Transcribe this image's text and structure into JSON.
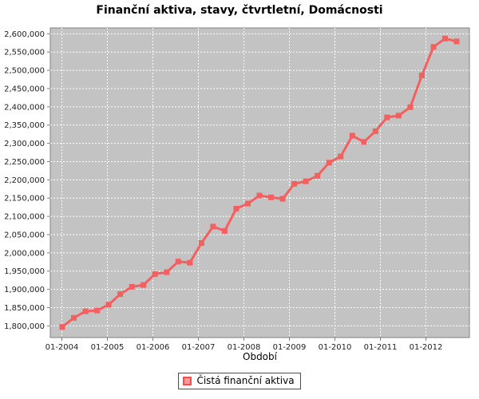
{
  "chart_data": {
    "type": "line",
    "title": "Finanční aktiva, stavy, čtvrtletní, Domácnosti",
    "xlabel": "Období",
    "ylabel": "",
    "legend_position": "bottom-center",
    "grid": "white-dashed",
    "x_tick_labels": [
      "01-2004",
      "01-2005",
      "01-2006",
      "01-2007",
      "01-2008",
      "01-2009",
      "01-2010",
      "01-2011",
      "01-2012"
    ],
    "y_tick_values": [
      1800000,
      1850000,
      1900000,
      1950000,
      2000000,
      2050000,
      2100000,
      2150000,
      2200000,
      2250000,
      2300000,
      2350000,
      2400000,
      2450000,
      2500000,
      2550000,
      2600000
    ],
    "y_tick_labels": [
      "1,800,000",
      "1,850,000",
      "1,900,000",
      "1,950,000",
      "2,000,000",
      "2,050,000",
      "2,100,000",
      "2,150,000",
      "2,200,000",
      "2,250,000",
      "2,300,000",
      "2,350,000",
      "2,400,000",
      "2,450,000",
      "2,500,000",
      "2,550,000",
      "2,600,000"
    ],
    "ylim": [
      1768000,
      2616000
    ],
    "series": [
      {
        "name": "Čistá finanční aktiva",
        "color": "#f45f5f",
        "marker": "square",
        "quarters": [
          "2004-Q1",
          "2004-Q2",
          "2004-Q3",
          "2004-Q4",
          "2005-Q1",
          "2005-Q2",
          "2005-Q3",
          "2005-Q4",
          "2006-Q1",
          "2006-Q2",
          "2006-Q3",
          "2006-Q4",
          "2007-Q1",
          "2007-Q2",
          "2007-Q3",
          "2007-Q4",
          "2008-Q1",
          "2008-Q2",
          "2008-Q3",
          "2008-Q4",
          "2009-Q1",
          "2009-Q2",
          "2009-Q3",
          "2009-Q4",
          "2010-Q1",
          "2010-Q2",
          "2010-Q3",
          "2010-Q4",
          "2011-Q1",
          "2011-Q2",
          "2011-Q3",
          "2011-Q4",
          "2012-Q1",
          "2012-Q2",
          "2012-Q3"
        ],
        "values": [
          1797000,
          1822000,
          1840000,
          1842000,
          1858000,
          1887000,
          1907000,
          1912000,
          1942000,
          1947000,
          1976000,
          1973000,
          2027000,
          2072000,
          2060000,
          2121000,
          2135000,
          2157000,
          2152000,
          2148000,
          2189000,
          2196000,
          2211000,
          2247000,
          2264000,
          2321000,
          2304000,
          2333000,
          2371000,
          2376000,
          2399000,
          2486000,
          2564000,
          2587000,
          2579000
        ]
      }
    ],
    "colors": {
      "plot_bg": "#c3c3c3",
      "grid": "#ffffff",
      "axis": "#808080",
      "tick_label": "#222222",
      "legend_swatch_fill": "#ff9a9a",
      "legend_swatch_border": "#f05050"
    }
  }
}
